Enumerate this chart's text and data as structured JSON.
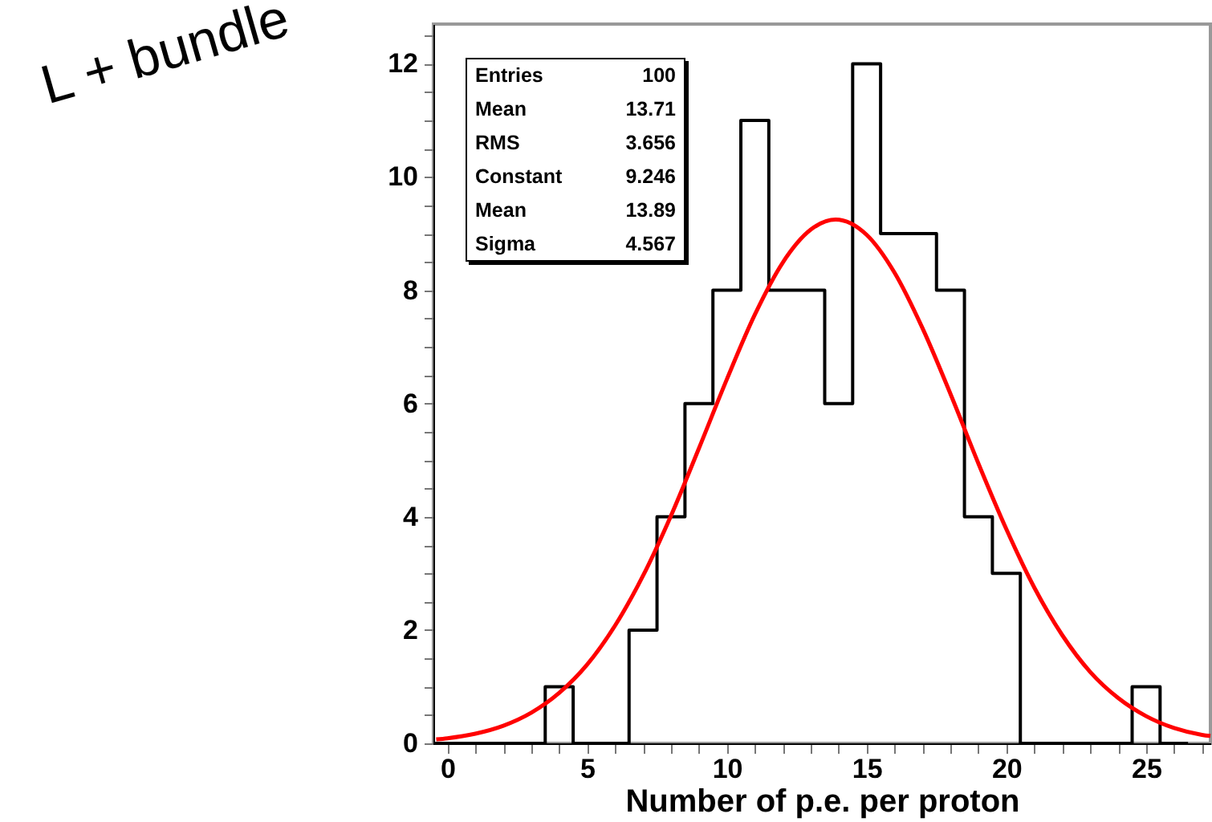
{
  "chart_data": {
    "type": "histogram",
    "xlabel": "Number of p.e. per proton",
    "bins": [
      -0.5,
      0.5,
      1.5,
      2.5,
      3.5,
      4.5,
      5.5,
      6.5,
      7.5,
      8.5,
      9.5,
      10.5,
      11.5,
      12.5,
      13.5,
      14.5,
      15.5,
      16.5,
      17.5,
      18.5,
      19.5,
      20.5,
      21.5,
      22.5,
      23.5,
      24.5,
      25.5,
      26.5
    ],
    "values": [
      0,
      0,
      0,
      0,
      1,
      0,
      0,
      2,
      4,
      6,
      8,
      11,
      8,
      8,
      6,
      12,
      9,
      9,
      8,
      4,
      3,
      0,
      0,
      0,
      0,
      1,
      0
    ],
    "color": "#000000",
    "series": [
      {
        "type": "line",
        "color": "#ff0000",
        "x": [
          -0.4,
          0,
          1,
          2,
          3,
          4,
          5,
          6,
          7,
          8,
          9,
          10,
          11,
          12,
          13,
          13.89,
          15,
          16,
          17,
          18,
          19,
          20,
          21,
          22,
          23,
          24,
          25,
          26,
          27,
          27.3
        ],
        "values": [
          0.07,
          0.09,
          0.17,
          0.31,
          0.54,
          0.89,
          1.39,
          2.08,
          2.96,
          4.02,
          5.21,
          6.43,
          7.57,
          8.49,
          9.07,
          9.25,
          8.98,
          8.31,
          7.33,
          6.17,
          4.94,
          3.78,
          2.75,
          1.91,
          1.26,
          0.8,
          0.48,
          0.27,
          0.15,
          0.13
        ]
      }
    ],
    "xlim": [
      -0.5,
      27.3
    ],
    "ylim": [
      0,
      12.7
    ],
    "xticks": [
      0,
      {
        "value": 1,
        "label": null
      },
      {
        "value": 2,
        "label": null
      },
      {
        "value": 3,
        "label": null
      },
      {
        "value": 4,
        "label": null
      },
      5,
      {
        "value": 6,
        "label": null
      },
      {
        "value": 7,
        "label": null
      },
      {
        "value": 8,
        "label": null
      },
      {
        "value": 9,
        "label": null
      },
      10,
      {
        "value": 11,
        "label": null
      },
      {
        "value": 12,
        "label": null
      },
      {
        "value": 13,
        "label": null
      },
      {
        "value": 14,
        "label": null
      },
      15,
      {
        "value": 16,
        "label": null
      },
      {
        "value": 17,
        "label": null
      },
      {
        "value": 18,
        "label": null
      },
      {
        "value": 19,
        "label": null
      },
      20,
      {
        "value": 21,
        "label": null
      },
      {
        "value": 22,
        "label": null
      },
      {
        "value": 23,
        "label": null
      },
      {
        "value": 24,
        "label": null
      },
      25,
      {
        "value": 26,
        "label": null
      },
      {
        "value": 27,
        "label": null
      }
    ],
    "yticks": [
      0,
      {
        "value": 0.5,
        "label": null
      },
      {
        "value": 1,
        "label": null
      },
      {
        "value": 1.5,
        "label": null
      },
      2,
      {
        "value": 2.5,
        "label": null
      },
      {
        "value": 3,
        "label": null
      },
      {
        "value": 3.5,
        "label": null
      },
      4,
      {
        "value": 4.5,
        "label": null
      },
      {
        "value": 5,
        "label": null
      },
      {
        "value": 5.5,
        "label": null
      },
      6,
      {
        "value": 6.5,
        "label": null
      },
      {
        "value": 7,
        "label": null
      },
      {
        "value": 7.5,
        "label": null
      },
      8,
      {
        "value": 8.5,
        "label": null
      },
      {
        "value": 9,
        "label": null
      },
      {
        "value": 9.5,
        "label": null
      },
      10,
      {
        "value": 10.5,
        "label": null
      },
      {
        "value": 11,
        "label": null
      },
      {
        "value": 11.5,
        "label": null
      },
      12,
      {
        "value": 12.5,
        "label": null
      }
    ],
    "grid": false,
    "annotations": [
      "L + bundle",
      "Entries",
      "100",
      "Mean",
      "13.71",
      "RMS",
      "3.656",
      "Constant",
      "9.246",
      "Mean",
      "13.89",
      "Sigma",
      "4.567"
    ]
  }
}
